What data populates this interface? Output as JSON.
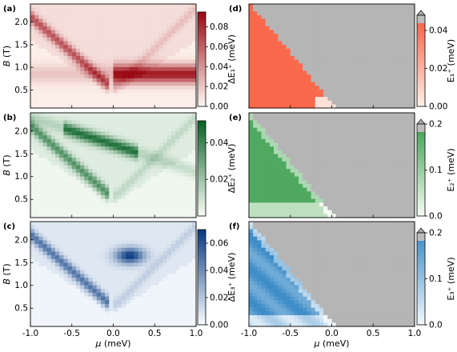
{
  "figure": {
    "panels_left": [
      {
        "tag": "(a)",
        "ylabel_italic": "B",
        "ylabel_unit": " (T)",
        "cb_label": "ΔE₁⁺ (meV)",
        "cb_ticks": [
          "0.08",
          "0.06",
          "0.04",
          "0.02",
          "0.00"
        ],
        "cb_vmax": 0.095,
        "cmap": "Reds"
      },
      {
        "tag": "(b)",
        "ylabel_italic": "B",
        "ylabel_unit": " (T)",
        "cb_label": "ΔE₂⁺ (meV)",
        "cb_ticks": [
          "0.04",
          "0.02"
        ],
        "cb_vmax": 0.052,
        "cmap": "Greens"
      },
      {
        "tag": "(c)",
        "ylabel_italic": "B",
        "ylabel_unit": " (T)",
        "cb_label": "ΔE₃⁺ (meV)",
        "cb_ticks": [
          "0.06",
          "0.04",
          "0.02",
          "0.00"
        ],
        "cb_vmax": 0.07,
        "cmap": "Blues"
      }
    ],
    "panels_right": [
      {
        "tag": "(d)",
        "cb_label": "E₁⁺ (meV)",
        "cb_ticks": [
          "0.04",
          "0.02",
          "0.00"
        ],
        "cb_vmax": 0.048,
        "cmap": "Reds_r"
      },
      {
        "tag": "(e)",
        "cb_label": "E₂⁺ (meV)",
        "cb_ticks": [
          "0.2",
          "0.1",
          "0.0"
        ],
        "cb_vmax": 0.2,
        "cmap": "Greens_r"
      },
      {
        "tag": "(f)",
        "cb_label": "E₃⁺ (meV)",
        "cb_ticks": [
          "0.2",
          "0.1",
          "0.0"
        ],
        "cb_vmax": 0.2,
        "cmap": "Blues_r"
      }
    ],
    "xlabel_italic": "μ",
    "xlabel_unit": " (meV)"
  },
  "chart_data": [
    {
      "type": "heatmap",
      "panel": "a",
      "x_range": [
        -1.0,
        1.0
      ],
      "y_range": [
        0.1,
        2.4
      ],
      "x_ticks": [
        -1.0,
        -0.5,
        0.0,
        0.5,
        1.0
      ],
      "x_tick_labels": [
        "",
        "",
        "",
        "",
        ""
      ],
      "y_ticks": [
        0.5,
        1.0,
        1.5,
        2.0
      ],
      "y_tick_labels": [
        "0.5",
        "1.0",
        "1.5",
        "2.0"
      ],
      "colorbar_range": [
        0.0,
        0.095
      ]
    },
    {
      "type": "heatmap",
      "panel": "b",
      "x_range": [
        -1.0,
        1.0
      ],
      "y_range": [
        0.1,
        2.4
      ],
      "x_ticks": [
        -1.0,
        -0.5,
        0.0,
        0.5,
        1.0
      ],
      "x_tick_labels": [
        "",
        "",
        "",
        "",
        ""
      ],
      "y_ticks": [
        0.5,
        1.0,
        1.5,
        2.0
      ],
      "y_tick_labels": [
        "0.5",
        "1.0",
        "1.5",
        "2.0"
      ],
      "colorbar_range": [
        0.0,
        0.052
      ]
    },
    {
      "type": "heatmap",
      "panel": "c",
      "x_range": [
        -1.0,
        1.0
      ],
      "y_range": [
        0.1,
        2.4
      ],
      "x_ticks": [
        -1.0,
        -0.5,
        0.0,
        0.5,
        1.0
      ],
      "x_tick_labels": [
        "-1.0",
        "-0.5",
        "0.0",
        "0.5",
        "1.0"
      ],
      "y_ticks": [
        0.5,
        1.0,
        1.5,
        2.0
      ],
      "y_tick_labels": [
        "0.5",
        "1.0",
        "1.5",
        "2.0"
      ],
      "colorbar_range": [
        0.0,
        0.07
      ]
    },
    {
      "type": "heatmap",
      "panel": "d",
      "x_range": [
        -1.0,
        1.0
      ],
      "y_range": [
        0.1,
        2.4
      ],
      "x_ticks": [
        -1.0,
        -0.5,
        0.0,
        0.5,
        1.0
      ],
      "x_tick_labels": [
        "",
        "",
        "",
        "",
        ""
      ],
      "colorbar_range": [
        0.0,
        0.048
      ]
    },
    {
      "type": "heatmap",
      "panel": "e",
      "x_range": [
        -1.0,
        1.0
      ],
      "y_range": [
        0.1,
        2.4
      ],
      "x_ticks": [
        -1.0,
        -0.5,
        0.0,
        0.5,
        1.0
      ],
      "x_tick_labels": [
        "",
        "",
        "",
        "",
        ""
      ],
      "colorbar_range": [
        0.0,
        0.2
      ]
    },
    {
      "type": "heatmap",
      "panel": "f",
      "x_range": [
        -1.0,
        1.0
      ],
      "y_range": [
        0.1,
        2.4
      ],
      "x_ticks": [
        -1.0,
        -0.5,
        0.0,
        0.5,
        1.0
      ],
      "x_tick_labels": [
        "-1.0",
        "-0.5",
        "0.0",
        "0.5",
        "1.0"
      ],
      "colorbar_range": [
        0.0,
        0.2
      ]
    }
  ]
}
